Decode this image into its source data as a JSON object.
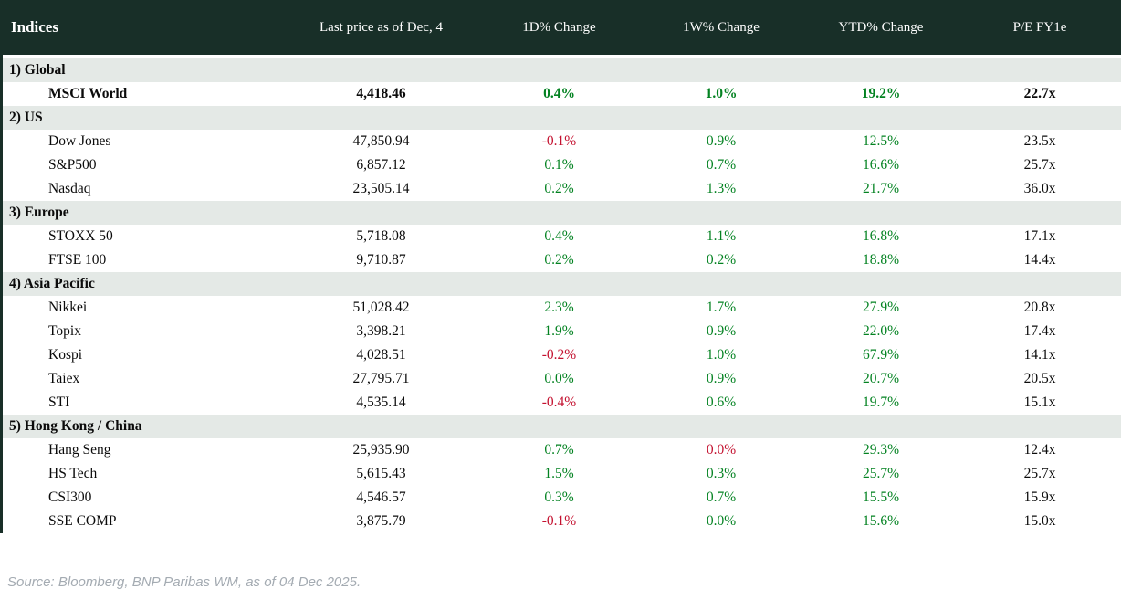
{
  "table": {
    "title": "Indices",
    "columns": [
      "Last price as of Dec, 4",
      "1D% Change",
      "1W% Change",
      "YTD% Change",
      "P/E FY1e"
    ],
    "sections": [
      {
        "label": "1) Global",
        "rows": [
          {
            "name": "MSCI World",
            "last_price": "4,418.46",
            "chg_1d": "0.4%",
            "chg_1d_dir": "up",
            "chg_1w": "1.0%",
            "chg_1w_dir": "up",
            "chg_ytd": "19.2%",
            "chg_ytd_dir": "up",
            "pe": "22.7x",
            "emphasis": true
          }
        ]
      },
      {
        "label": "2) US",
        "rows": [
          {
            "name": "Dow Jones",
            "last_price": "47,850.94",
            "chg_1d": "-0.1%",
            "chg_1d_dir": "down",
            "chg_1w": "0.9%",
            "chg_1w_dir": "up",
            "chg_ytd": "12.5%",
            "chg_ytd_dir": "up",
            "pe": "23.5x",
            "emphasis": false
          },
          {
            "name": "S&P500",
            "last_price": "6,857.12",
            "chg_1d": "0.1%",
            "chg_1d_dir": "up",
            "chg_1w": "0.7%",
            "chg_1w_dir": "up",
            "chg_ytd": "16.6%",
            "chg_ytd_dir": "up",
            "pe": "25.7x",
            "emphasis": false
          },
          {
            "name": "Nasdaq",
            "last_price": "23,505.14",
            "chg_1d": "0.2%",
            "chg_1d_dir": "up",
            "chg_1w": "1.3%",
            "chg_1w_dir": "up",
            "chg_ytd": "21.7%",
            "chg_ytd_dir": "up",
            "pe": "36.0x",
            "emphasis": false
          }
        ]
      },
      {
        "label": "3) Europe",
        "rows": [
          {
            "name": "STOXX 50",
            "last_price": "5,718.08",
            "chg_1d": "0.4%",
            "chg_1d_dir": "up",
            "chg_1w": "1.1%",
            "chg_1w_dir": "up",
            "chg_ytd": "16.8%",
            "chg_ytd_dir": "up",
            "pe": "17.1x",
            "emphasis": false
          },
          {
            "name": "FTSE 100",
            "last_price": "9,710.87",
            "chg_1d": "0.2%",
            "chg_1d_dir": "up",
            "chg_1w": "0.2%",
            "chg_1w_dir": "up",
            "chg_ytd": "18.8%",
            "chg_ytd_dir": "up",
            "pe": "14.4x",
            "emphasis": false
          }
        ]
      },
      {
        "label": "4) Asia Pacific",
        "rows": [
          {
            "name": "Nikkei",
            "last_price": "51,028.42",
            "chg_1d": "2.3%",
            "chg_1d_dir": "up",
            "chg_1w": "1.7%",
            "chg_1w_dir": "up",
            "chg_ytd": "27.9%",
            "chg_ytd_dir": "up",
            "pe": "20.8x",
            "emphasis": false
          },
          {
            "name": "Topix",
            "last_price": "3,398.21",
            "chg_1d": "1.9%",
            "chg_1d_dir": "up",
            "chg_1w": "0.9%",
            "chg_1w_dir": "up",
            "chg_ytd": "22.0%",
            "chg_ytd_dir": "up",
            "pe": "17.4x",
            "emphasis": false
          },
          {
            "name": "Kospi",
            "last_price": "4,028.51",
            "chg_1d": "-0.2%",
            "chg_1d_dir": "down",
            "chg_1w": "1.0%",
            "chg_1w_dir": "up",
            "chg_ytd": "67.9%",
            "chg_ytd_dir": "up",
            "pe": "14.1x",
            "emphasis": false
          },
          {
            "name": "Taiex",
            "last_price": "27,795.71",
            "chg_1d": "0.0%",
            "chg_1d_dir": "up",
            "chg_1w": "0.9%",
            "chg_1w_dir": "up",
            "chg_ytd": "20.7%",
            "chg_ytd_dir": "up",
            "pe": "20.5x",
            "emphasis": false
          },
          {
            "name": "STI",
            "last_price": "4,535.14",
            "chg_1d": "-0.4%",
            "chg_1d_dir": "down",
            "chg_1w": "0.6%",
            "chg_1w_dir": "up",
            "chg_ytd": "19.7%",
            "chg_ytd_dir": "up",
            "pe": "15.1x",
            "emphasis": false
          }
        ]
      },
      {
        "label": "5) Hong Kong / China",
        "rows": [
          {
            "name": "Hang Seng",
            "last_price": "25,935.90",
            "chg_1d": "0.7%",
            "chg_1d_dir": "up",
            "chg_1w": "0.0%",
            "chg_1w_dir": "down",
            "chg_ytd": "29.3%",
            "chg_ytd_dir": "up",
            "pe": "12.4x",
            "emphasis": false
          },
          {
            "name": "HS Tech",
            "last_price": "5,615.43",
            "chg_1d": "1.5%",
            "chg_1d_dir": "up",
            "chg_1w": "0.3%",
            "chg_1w_dir": "up",
            "chg_ytd": "25.7%",
            "chg_ytd_dir": "up",
            "pe": "25.7x",
            "emphasis": false
          },
          {
            "name": "CSI300",
            "last_price": "4,546.57",
            "chg_1d": "0.3%",
            "chg_1d_dir": "up",
            "chg_1w": "0.7%",
            "chg_1w_dir": "up",
            "chg_ytd": "15.5%",
            "chg_ytd_dir": "up",
            "pe": "15.9x",
            "emphasis": false
          },
          {
            "name": "SSE COMP",
            "last_price": "3,875.79",
            "chg_1d": "-0.1%",
            "chg_1d_dir": "down",
            "chg_1w": "0.0%",
            "chg_1w_dir": "up",
            "chg_ytd": "15.6%",
            "chg_ytd_dir": "up",
            "pe": "15.0x",
            "emphasis": false
          }
        ]
      }
    ]
  },
  "colors": {
    "header_bg": "#182f28",
    "section_bg": "#e4e9e6",
    "positive": "#038221",
    "negative": "#c41230",
    "text": "#0b0b0b"
  },
  "footer": {
    "source": "Source: Bloomberg, BNP Paribas WM, as of 04 Dec 2025."
  }
}
